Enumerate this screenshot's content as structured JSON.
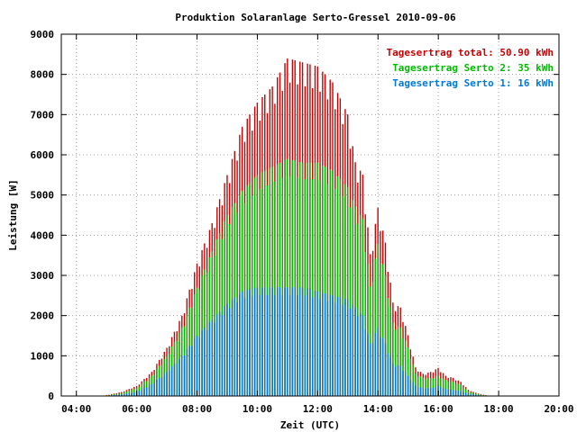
{
  "chart_data": {
    "type": "bar",
    "title": "Produktion Solaranlage Serto-Gressel 2010-09-06",
    "xlabel": "Zeit (UTC)",
    "ylabel": "Leistung [W]",
    "xlim": [
      3.5,
      20.0
    ],
    "ylim": [
      0,
      9000
    ],
    "x_ticks": [
      "04:00",
      "06:00",
      "08:00",
      "10:00",
      "12:00",
      "14:00",
      "16:00",
      "18:00",
      "20:00"
    ],
    "y_ticks": [
      "0",
      "1000",
      "2000",
      "3000",
      "4000",
      "5000",
      "6000",
      "7000",
      "8000",
      "9000"
    ],
    "grid": true,
    "legend_position": "top-right",
    "legend": [
      {
        "text": "Tagesertrag total: 50.90 kWh",
        "color": "#cc0000"
      },
      {
        "text": "Tagesertrag Serto 2: 35 kWh",
        "color": "#00bb00"
      },
      {
        "text": "Tagesertrag Serto 1: 16 kWh",
        "color": "#0077dd"
      }
    ],
    "keyframes": {
      "x": [
        5.0,
        5.5,
        6.0,
        6.5,
        7.0,
        7.5,
        8.0,
        8.5,
        9.0,
        9.5,
        10.0,
        10.5,
        11.0,
        11.5,
        12.0,
        12.5,
        13.0,
        13.25,
        13.5,
        13.75,
        14.0,
        14.25,
        14.5,
        14.75,
        15.0,
        15.25,
        15.5,
        15.75,
        16.0,
        16.25,
        16.5,
        16.75,
        17.0,
        17.25,
        17.5,
        17.75
      ],
      "total": [
        20,
        100,
        250,
        600,
        1200,
        2000,
        3300,
        4300,
        5500,
        6700,
        7300,
        7700,
        8400,
        8300,
        8200,
        7800,
        7000,
        5800,
        5500,
        3500,
        4700,
        3800,
        2300,
        2200,
        1500,
        700,
        550,
        600,
        700,
        500,
        450,
        350,
        150,
        80,
        30,
        0
      ],
      "serto2": [
        10,
        70,
        200,
        500,
        1000,
        1700,
        2700,
        3600,
        4500,
        5100,
        5500,
        5700,
        5900,
        5800,
        5800,
        5600,
        5200,
        4700,
        4400,
        2700,
        3800,
        3000,
        1800,
        1700,
        1200,
        550,
        450,
        450,
        500,
        400,
        350,
        280,
        120,
        60,
        20,
        0
      ],
      "serto1": [
        5,
        40,
        100,
        300,
        600,
        1000,
        1500,
        1900,
        2300,
        2600,
        2700,
        2700,
        2700,
        2700,
        2600,
        2500,
        2400,
        2200,
        2000,
        1300,
        1700,
        1300,
        800,
        750,
        500,
        250,
        200,
        200,
        250,
        180,
        150,
        120,
        60,
        30,
        10,
        0
      ]
    },
    "sample_start": 5.0,
    "sample_end": 17.75,
    "sample_step": 0.0833
  }
}
